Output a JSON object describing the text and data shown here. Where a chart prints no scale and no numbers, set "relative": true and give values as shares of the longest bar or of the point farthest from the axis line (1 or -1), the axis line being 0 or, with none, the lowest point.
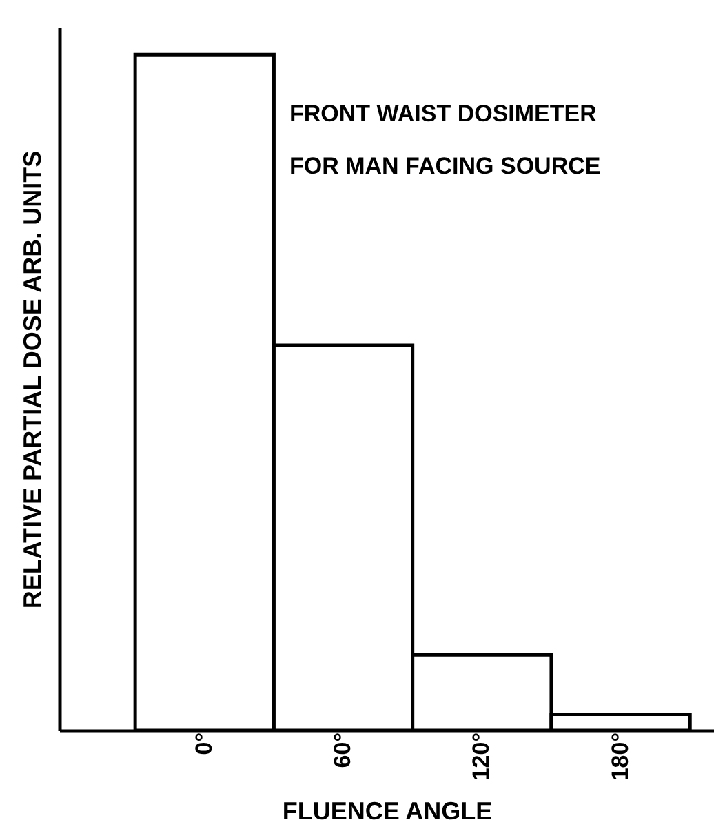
{
  "chart_data": {
    "type": "bar",
    "relative": true,
    "xlabel": "FLUENCE ANGLE",
    "ylabel": "RELATIVE PARTIAL DOSE ARB. UNITS",
    "categories": [
      "0°",
      "60°",
      "120°",
      "180°"
    ],
    "values": [
      1,
      0.57,
      0.112,
      0.024
    ],
    "color": "#ffffff",
    "annotations": [
      "FRONT WAIST DOSIMETER",
      "FOR MAN FACING SOURCE"
    ]
  }
}
